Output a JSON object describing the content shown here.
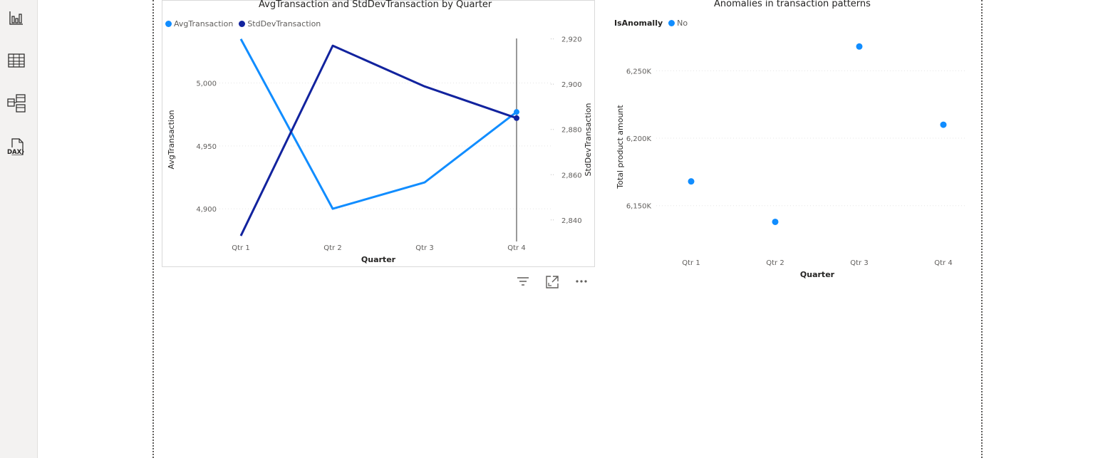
{
  "rail": {
    "items": [
      {
        "name": "report-view-icon"
      },
      {
        "name": "table-view-icon"
      },
      {
        "name": "model-view-icon"
      },
      {
        "name": "dax-query-view-icon",
        "label": "DAX"
      }
    ]
  },
  "left_chart": {
    "title": "AvgTransaction and StdDevTransaction by Quarter",
    "legend": [
      {
        "label": "AvgTransaction",
        "color": "#118DFF"
      },
      {
        "label": "StdDevTransaction",
        "color": "#12239E"
      }
    ],
    "actions": [
      "filter-icon",
      "focus-mode-icon",
      "more-options-icon"
    ]
  },
  "right_chart": {
    "title": "Anomalies in transaction patterns",
    "legend_title": "IsAnomally",
    "legend": [
      {
        "label": "No",
        "color": "#118DFF"
      }
    ]
  },
  "chart_data": [
    {
      "type": "line",
      "title": "AvgTransaction and StdDevTransaction by Quarter",
      "categories": [
        "Qtr 1",
        "Qtr 2",
        "Qtr 3",
        "Qtr 4"
      ],
      "xlabel": "Quarter",
      "ylabel": "AvgTransaction",
      "y2label": "StdDevTransaction",
      "y_ticks": [
        "4,900",
        "4,950",
        "5,000"
      ],
      "y_ticks_values": [
        4900,
        4950,
        5000
      ],
      "y2_ticks": [
        "2,840",
        "2,860",
        "2,880",
        "2,900",
        "2,920"
      ],
      "y2_ticks_values": [
        2840,
        2860,
        2880,
        2900,
        2920
      ],
      "ylim": [
        4874,
        5036
      ],
      "y2lim": [
        2830.5,
        2920.5
      ],
      "series": [
        {
          "name": "AvgTransaction",
          "axis": "left",
          "color": "#118DFF",
          "values": [
            5035,
            4900,
            4921,
            4977
          ]
        },
        {
          "name": "StdDevTransaction",
          "axis": "right",
          "color": "#12239E",
          "values": [
            2833,
            2917,
            2899,
            2885
          ]
        }
      ],
      "legend": "top-left",
      "grid": true,
      "hover_category": "Qtr 4"
    },
    {
      "type": "scatter",
      "title": "Anomalies in transaction patterns",
      "categories": [
        "Qtr 1",
        "Qtr 2",
        "Qtr 3",
        "Qtr 4"
      ],
      "xlabel": "Quarter",
      "ylabel": "Total product amount",
      "y_ticks": [
        "6,150K",
        "6,200K",
        "6,250K"
      ],
      "y_ticks_values": [
        6150000,
        6200000,
        6250000
      ],
      "ylim": [
        6115000,
        6275000
      ],
      "series": [
        {
          "name": "No",
          "color": "#118DFF",
          "values": [
            6168000,
            6138000,
            6268000,
            6210000
          ]
        }
      ],
      "legend": "top-left",
      "grid": true
    }
  ]
}
